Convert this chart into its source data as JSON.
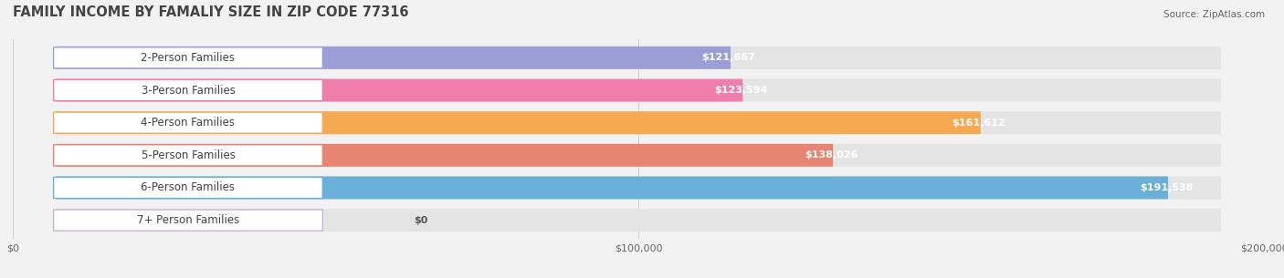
{
  "title": "FAMILY INCOME BY FAMALIY SIZE IN ZIP CODE 77316",
  "source": "Source: ZipAtlas.com",
  "categories": [
    "2-Person Families",
    "3-Person Families",
    "4-Person Families",
    "5-Person Families",
    "6-Person Families",
    "7+ Person Families"
  ],
  "values": [
    121667,
    123594,
    161612,
    138026,
    191538,
    0
  ],
  "bar_colors": [
    "#9b9fd6",
    "#f07eac",
    "#f5aa52",
    "#e88472",
    "#6aafd8",
    "#c8b4d8"
  ],
  "value_labels": [
    "$121,667",
    "$123,594",
    "$161,612",
    "$138,026",
    "$191,538",
    "$0"
  ],
  "xlim": [
    0,
    200000
  ],
  "xticks": [
    0,
    100000,
    200000
  ],
  "xtick_labels": [
    "$0",
    "$100,000",
    "$200,000"
  ],
  "background_color": "#f2f2f2",
  "bar_bg_color": "#e4e4e4",
  "title_fontsize": 10.5,
  "label_fontsize": 8.5,
  "value_fontsize": 8.0
}
